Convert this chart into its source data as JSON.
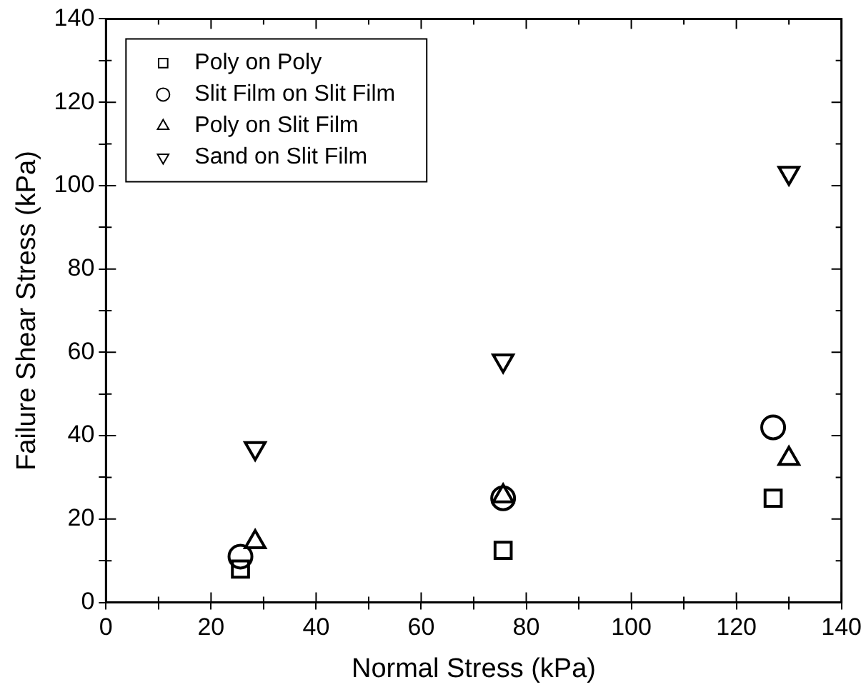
{
  "chart_data": {
    "type": "scatter",
    "xlabel": "Normal Stress (kPa)",
    "ylabel": "Failure Shear Stress (kPa)",
    "xlim": [
      0,
      140
    ],
    "ylim": [
      0,
      140
    ],
    "xticks": [
      0,
      {
        "value": 10,
        "label": null
      },
      20,
      {
        "value": 30,
        "label": null
      },
      40,
      {
        "value": 50,
        "label": null
      },
      60,
      {
        "value": 70,
        "label": null
      },
      80,
      {
        "value": 90,
        "label": null
      },
      100,
      {
        "value": 110,
        "label": null
      },
      120,
      {
        "value": 130,
        "label": null
      },
      140
    ],
    "yticks": [
      0,
      {
        "value": 10,
        "label": null
      },
      20,
      {
        "value": 30,
        "label": null
      },
      40,
      {
        "value": 50,
        "label": null
      },
      60,
      {
        "value": 70,
        "label": null
      },
      80,
      {
        "value": 90,
        "label": null
      },
      100,
      {
        "value": 110,
        "label": null
      },
      120,
      {
        "value": 130,
        "label": null
      },
      140
    ],
    "grid": false,
    "legend": "top left",
    "series": [
      {
        "name": "Poly on Poly",
        "color": "#000000",
        "marker": "square",
        "x": [
          25.6,
          75.6,
          127
        ],
        "values": [
          8,
          12.5,
          25
        ]
      },
      {
        "name": "Slit Film on Slit Film",
        "color": "#000000",
        "marker": "circle",
        "x": [
          25.6,
          75.6,
          127
        ],
        "values": [
          11,
          25,
          42
        ]
      },
      {
        "name": "Poly on Slit Film",
        "color": "#000000",
        "marker": "triangle",
        "x": [
          28.4,
          75.6,
          130
        ],
        "values": [
          14.5,
          25.5,
          34.5
        ]
      },
      {
        "name": "Sand on Slit Film",
        "color": "#000000",
        "marker": "triangle-down",
        "x": [
          28.4,
          75.6,
          130
        ],
        "values": [
          37,
          58,
          103
        ]
      }
    ]
  }
}
